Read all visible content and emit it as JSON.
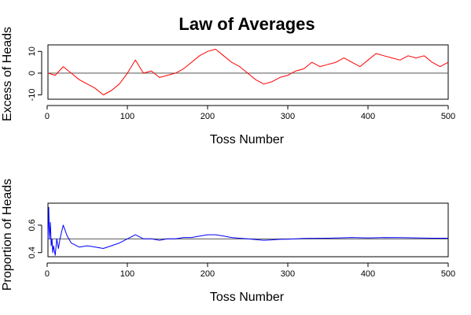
{
  "chart_data": [
    {
      "type": "line",
      "title": "Law of Averages",
      "xlabel": "Toss Number",
      "ylabel": "Excess of Heads",
      "xlim": [
        1,
        500
      ],
      "ylim": [
        -12,
        13
      ],
      "x_ticks": [
        0,
        100,
        200,
        300,
        400,
        500
      ],
      "y_ticks": [
        -10,
        0,
        10
      ],
      "reference_line": 0,
      "grid": false,
      "colors": {
        "series": "#ff0000",
        "reference": "#555555"
      },
      "series": [
        {
          "x": [
            1,
            10,
            20,
            30,
            40,
            50,
            60,
            70,
            80,
            90,
            100,
            110,
            120,
            130,
            140,
            150,
            160,
            170,
            180,
            190,
            200,
            210,
            220,
            230,
            240,
            250,
            260,
            270,
            280,
            290,
            300,
            310,
            320,
            330,
            340,
            350,
            360,
            370,
            380,
            390,
            400,
            410,
            420,
            430,
            440,
            450,
            460,
            470,
            480,
            490,
            500
          ],
          "values": [
            0,
            -1,
            3,
            0,
            -3,
            -5,
            -7,
            -10,
            -8,
            -5,
            0,
            6,
            0,
            1,
            -2,
            -1,
            0,
            2,
            5,
            8,
            10,
            11,
            8,
            5,
            3,
            0,
            -3,
            -5,
            -4,
            -2,
            -1,
            1,
            2,
            5,
            3,
            4,
            5,
            7,
            5,
            3,
            6,
            9,
            8,
            7,
            6,
            8,
            7,
            8,
            5,
            3,
            5
          ]
        }
      ]
    },
    {
      "type": "line",
      "title": "",
      "xlabel": "Toss Number",
      "ylabel": "Proportion of Heads",
      "xlim": [
        1,
        500
      ],
      "ylim": [
        0.37,
        0.76
      ],
      "x_ticks": [
        0,
        100,
        200,
        300,
        400,
        500
      ],
      "y_ticks": [
        0.4,
        0.6
      ],
      "reference_line": 0.5,
      "grid": false,
      "colors": {
        "series": "#0000ff",
        "reference": "#555555"
      },
      "series": [
        {
          "x": [
            1,
            2,
            3,
            4,
            5,
            6,
            7,
            8,
            10,
            12,
            14,
            16,
            20,
            25,
            30,
            40,
            50,
            60,
            70,
            80,
            90,
            100,
            110,
            120,
            130,
            140,
            150,
            160,
            170,
            180,
            190,
            200,
            210,
            220,
            230,
            240,
            250,
            260,
            270,
            280,
            290,
            300,
            320,
            350,
            380,
            400,
            420,
            450,
            480,
            500
          ],
          "values": [
            0.5,
            0.73,
            0.5,
            0.62,
            0.45,
            0.5,
            0.4,
            0.45,
            0.38,
            0.5,
            0.43,
            0.5,
            0.6,
            0.52,
            0.47,
            0.44,
            0.45,
            0.44,
            0.43,
            0.45,
            0.47,
            0.5,
            0.53,
            0.5,
            0.5,
            0.49,
            0.5,
            0.5,
            0.51,
            0.51,
            0.52,
            0.53,
            0.53,
            0.52,
            0.51,
            0.505,
            0.5,
            0.495,
            0.49,
            0.493,
            0.497,
            0.498,
            0.503,
            0.505,
            0.51,
            0.507,
            0.51,
            0.508,
            0.505,
            0.505
          ]
        }
      ]
    }
  ]
}
